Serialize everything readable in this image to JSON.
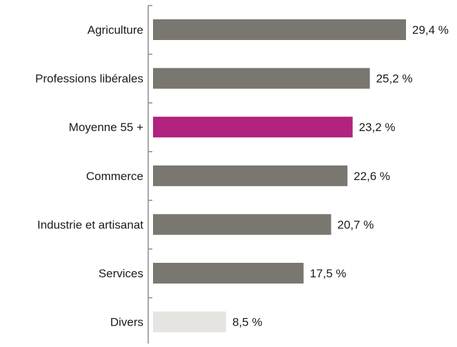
{
  "chart_data": {
    "type": "bar",
    "orientation": "horizontal",
    "categories": [
      "Agriculture",
      "Professions libérales",
      "Moyenne 55 +",
      "Commerce",
      "Industrie et artisanat",
      "Services",
      "Divers"
    ],
    "values": [
      29.4,
      25.2,
      23.2,
      22.6,
      20.7,
      17.5,
      8.5
    ],
    "value_labels": [
      "29,4 %",
      "25,2 %",
      "23,2 %",
      "22,6 %",
      "20,7 %",
      "17,5 %",
      "8,5 %"
    ],
    "colors": [
      "#7a7770",
      "#7a7770",
      "#b0237f",
      "#7a7770",
      "#7a7770",
      "#7a7770",
      "#e6e4e1"
    ],
    "xlim": [
      0,
      30
    ],
    "grid": false,
    "legend": "none",
    "title": "",
    "xlabel": "",
    "ylabel": ""
  }
}
